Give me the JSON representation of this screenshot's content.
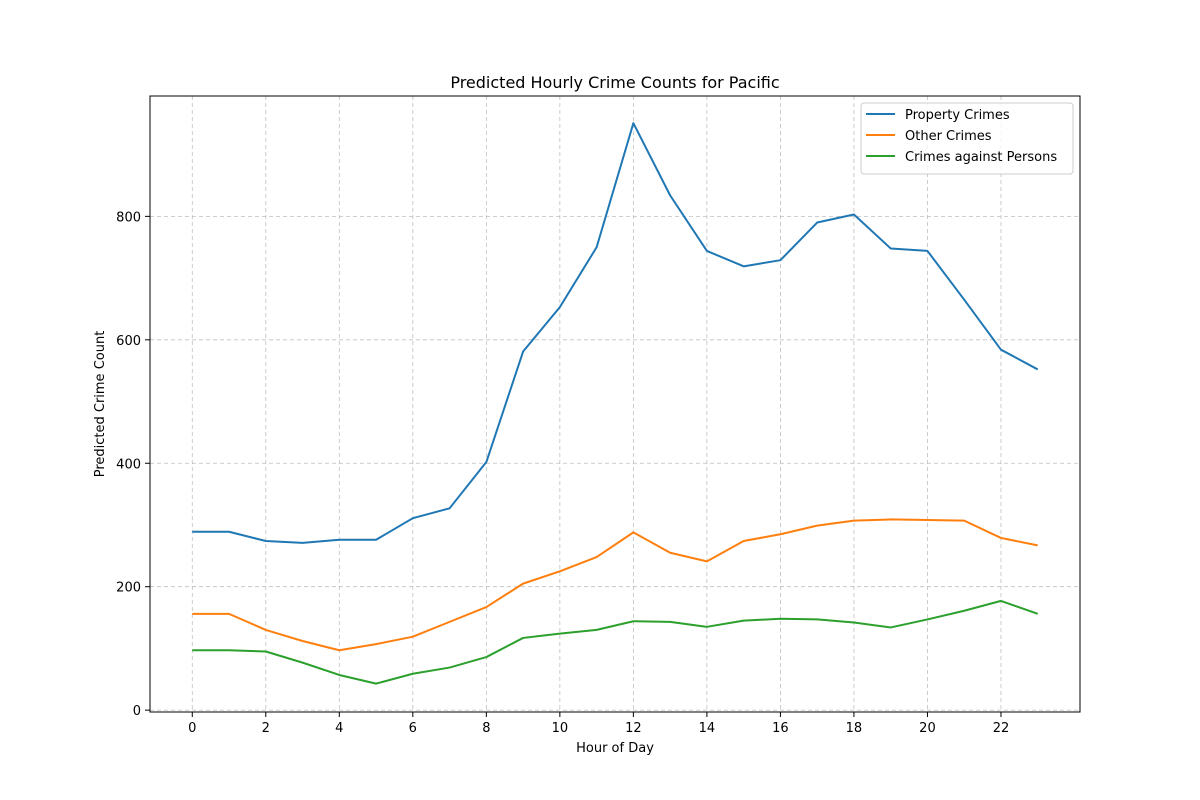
{
  "chart_data": {
    "type": "line",
    "title": "Predicted Hourly Crime Counts for Pacific",
    "xlabel": "Hour of Day",
    "ylabel": "Predicted Crime Count",
    "x": [
      0,
      1,
      2,
      3,
      4,
      5,
      6,
      7,
      8,
      9,
      10,
      11,
      12,
      13,
      14,
      15,
      16,
      17,
      18,
      19,
      20,
      21,
      22,
      23
    ],
    "xlim": [
      -1.15,
      24.15
    ],
    "ylim": [
      -3,
      995
    ],
    "xticks": [
      0,
      2,
      4,
      6,
      8,
      10,
      12,
      14,
      16,
      18,
      20,
      22
    ],
    "yticks": [
      0,
      200,
      400,
      600,
      800
    ],
    "grid": true,
    "legend_position": "top-right",
    "series": [
      {
        "name": "Property Crimes",
        "color": "#1f77b4",
        "values": [
          289,
          289,
          274,
          271,
          276,
          276,
          311,
          327,
          402,
          581,
          653,
          750,
          951,
          834,
          744,
          719,
          729,
          790,
          803,
          748,
          744,
          665,
          584,
          552
        ]
      },
      {
        "name": "Other Crimes",
        "color": "#ff7f0e",
        "values": [
          156,
          156,
          130,
          112,
          97,
          107,
          119,
          143,
          167,
          205,
          225,
          248,
          288,
          255,
          241,
          274,
          285,
          299,
          307,
          309,
          308,
          307,
          279,
          267
        ]
      },
      {
        "name": "Crimes against Persons",
        "color": "#2ca02c",
        "values": [
          97,
          97,
          95,
          77,
          57,
          43,
          59,
          69,
          86,
          117,
          124,
          130,
          144,
          143,
          135,
          145,
          148,
          147,
          142,
          134,
          147,
          161,
          177,
          156
        ]
      }
    ]
  }
}
